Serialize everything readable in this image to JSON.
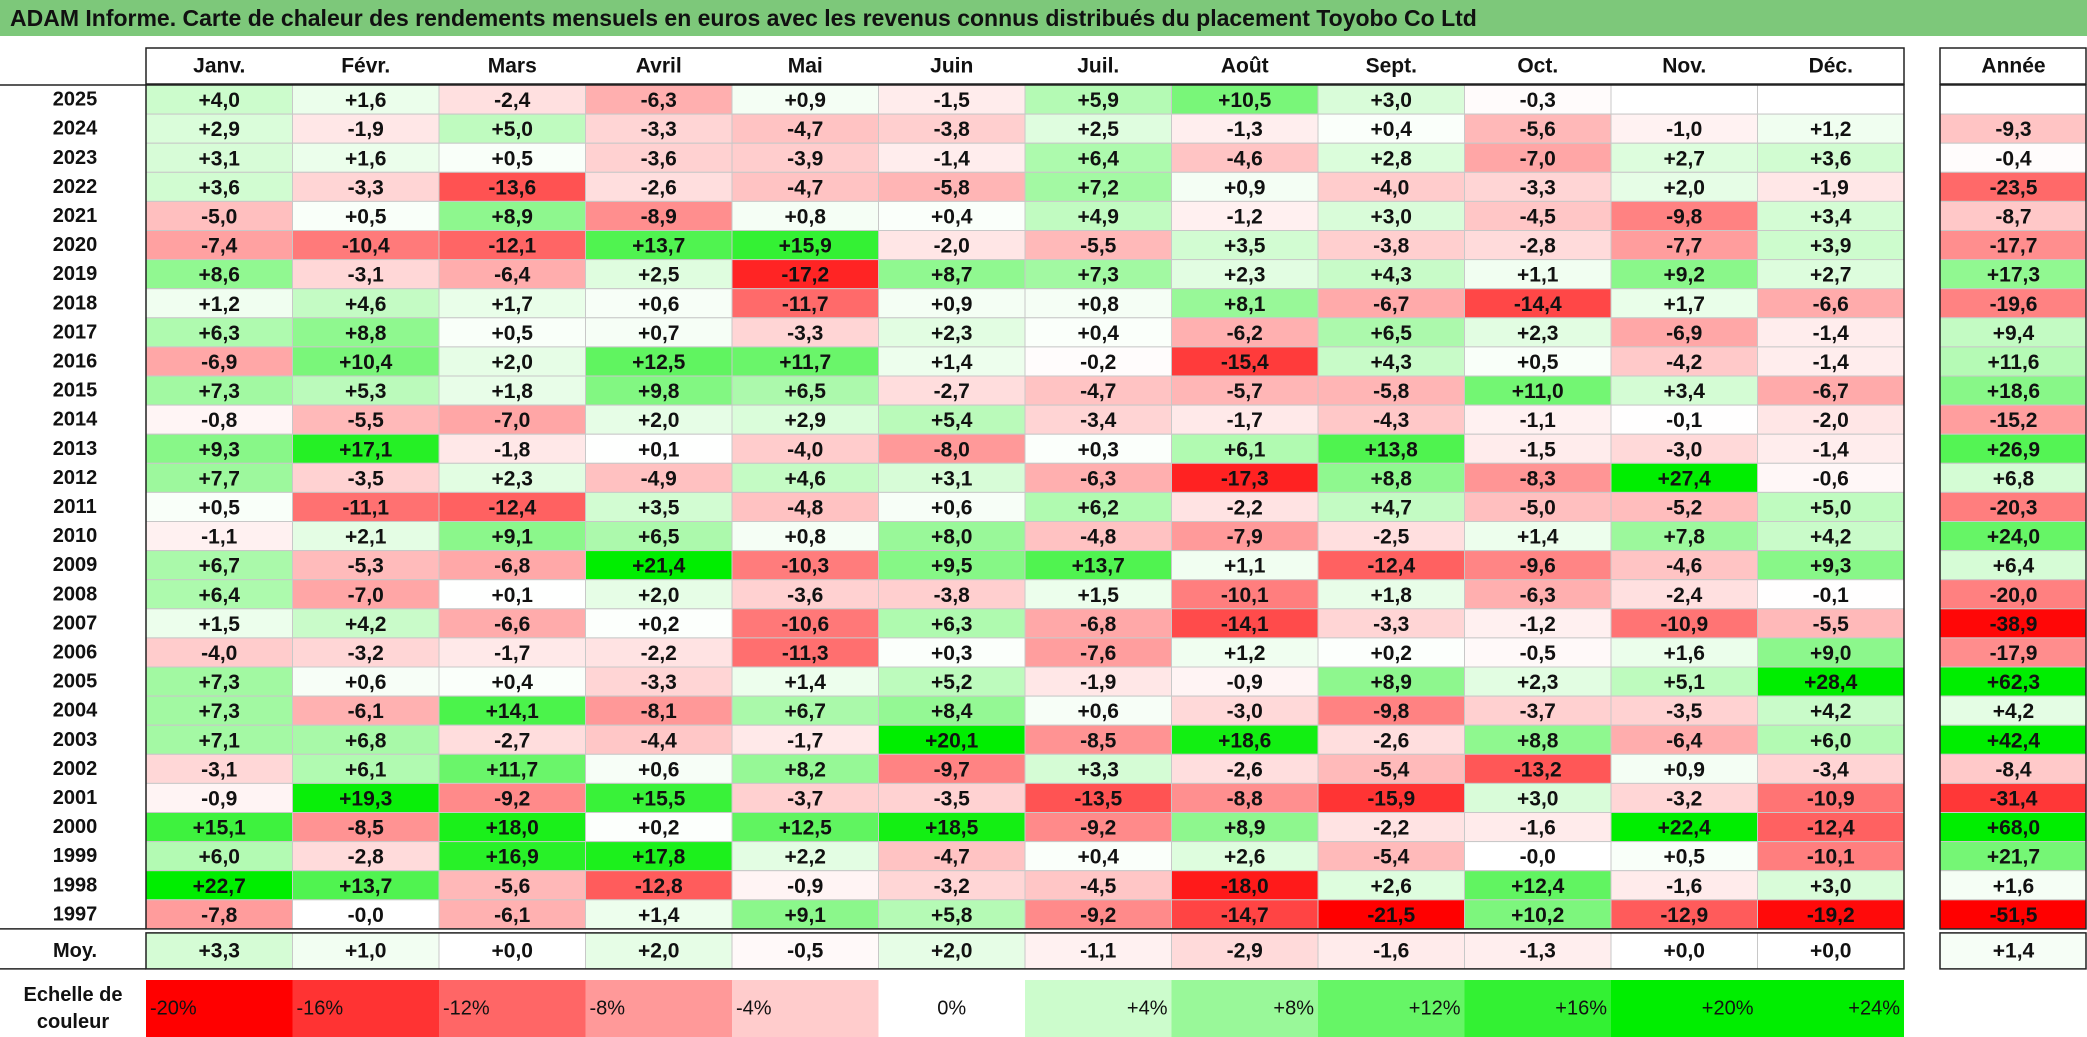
{
  "title": "ADAM Informe. Carte de chaleur des rendements mensuels en euros avec les revenus connus distribués du placement Toyobo Co Ltd",
  "chart_data": {
    "type": "heatmap",
    "months": [
      "Janv.",
      "Févr.",
      "Mars",
      "Avril",
      "Mai",
      "Juin",
      "Juil.",
      "Août",
      "Sept.",
      "Oct.",
      "Nov.",
      "Déc."
    ],
    "year_column_label": "Année",
    "average_row_label": "Moy.",
    "rows": [
      {
        "year": "2025",
        "values": [
          "+4,0",
          "+1,6",
          "-2,4",
          "-6,3",
          "+0,9",
          "-1,5",
          "+5,9",
          "+10,5",
          "+3,0",
          "-0,3",
          "",
          ""
        ],
        "annual": ""
      },
      {
        "year": "2024",
        "values": [
          "+2,9",
          "-1,9",
          "+5,0",
          "-3,3",
          "-4,7",
          "-3,8",
          "+2,5",
          "-1,3",
          "+0,4",
          "-5,6",
          "-1,0",
          "+1,2"
        ],
        "annual": "-9,3"
      },
      {
        "year": "2023",
        "values": [
          "+3,1",
          "+1,6",
          "+0,5",
          "-3,6",
          "-3,9",
          "-1,4",
          "+6,4",
          "-4,6",
          "+2,8",
          "-7,0",
          "+2,7",
          "+3,6"
        ],
        "annual": "-0,4"
      },
      {
        "year": "2022",
        "values": [
          "+3,6",
          "-3,3",
          "-13,6",
          "-2,6",
          "-4,7",
          "-5,8",
          "+7,2",
          "+0,9",
          "-4,0",
          "-3,3",
          "+2,0",
          "-1,9"
        ],
        "annual": "-23,5"
      },
      {
        "year": "2021",
        "values": [
          "-5,0",
          "+0,5",
          "+8,9",
          "-8,9",
          "+0,8",
          "+0,4",
          "+4,9",
          "-1,2",
          "+3,0",
          "-4,5",
          "-9,8",
          "+3,4"
        ],
        "annual": "-8,7"
      },
      {
        "year": "2020",
        "values": [
          "-7,4",
          "-10,4",
          "-12,1",
          "+13,7",
          "+15,9",
          "-2,0",
          "-5,5",
          "+3,5",
          "-3,8",
          "-2,8",
          "-7,7",
          "+3,9"
        ],
        "annual": "-17,7"
      },
      {
        "year": "2019",
        "values": [
          "+8,6",
          "-3,1",
          "-6,4",
          "+2,5",
          "-17,2",
          "+8,7",
          "+7,3",
          "+2,3",
          "+4,3",
          "+1,1",
          "+9,2",
          "+2,7"
        ],
        "annual": "+17,3"
      },
      {
        "year": "2018",
        "values": [
          "+1,2",
          "+4,6",
          "+1,7",
          "+0,6",
          "-11,7",
          "+0,9",
          "+0,8",
          "+8,1",
          "-6,7",
          "-14,4",
          "+1,7",
          "-6,6"
        ],
        "annual": "-19,6"
      },
      {
        "year": "2017",
        "values": [
          "+6,3",
          "+8,8",
          "+0,5",
          "+0,7",
          "-3,3",
          "+2,3",
          "+0,4",
          "-6,2",
          "+6,5",
          "+2,3",
          "-6,9",
          "-1,4"
        ],
        "annual": "+9,4"
      },
      {
        "year": "2016",
        "values": [
          "-6,9",
          "+10,4",
          "+2,0",
          "+12,5",
          "+11,7",
          "+1,4",
          "-0,2",
          "-15,4",
          "+4,3",
          "+0,5",
          "-4,2",
          "-1,4"
        ],
        "annual": "+11,6"
      },
      {
        "year": "2015",
        "values": [
          "+7,3",
          "+5,3",
          "+1,8",
          "+9,8",
          "+6,5",
          "-2,7",
          "-4,7",
          "-5,7",
          "-5,8",
          "+11,0",
          "+3,4",
          "-6,7"
        ],
        "annual": "+18,6"
      },
      {
        "year": "2014",
        "values": [
          "-0,8",
          "-5,5",
          "-7,0",
          "+2,0",
          "+2,9",
          "+5,4",
          "-3,4",
          "-1,7",
          "-4,3",
          "-1,1",
          "-0,1",
          "-2,0"
        ],
        "annual": "-15,2"
      },
      {
        "year": "2013",
        "values": [
          "+9,3",
          "+17,1",
          "-1,8",
          "+0,1",
          "-4,0",
          "-8,0",
          "+0,3",
          "+6,1",
          "+13,8",
          "-1,5",
          "-3,0",
          "-1,4"
        ],
        "annual": "+26,9"
      },
      {
        "year": "2012",
        "values": [
          "+7,7",
          "-3,5",
          "+2,3",
          "-4,9",
          "+4,6",
          "+3,1",
          "-6,3",
          "-17,3",
          "+8,8",
          "-8,3",
          "+27,4",
          "-0,6"
        ],
        "annual": "+6,8"
      },
      {
        "year": "2011",
        "values": [
          "+0,5",
          "-11,1",
          "-12,4",
          "+3,5",
          "-4,8",
          "+0,6",
          "+6,2",
          "-2,2",
          "+4,7",
          "-5,0",
          "-5,2",
          "+5,0"
        ],
        "annual": "-20,3"
      },
      {
        "year": "2010",
        "values": [
          "-1,1",
          "+2,1",
          "+9,1",
          "+6,5",
          "+0,8",
          "+8,0",
          "-4,8",
          "-7,9",
          "-2,5",
          "+1,4",
          "+7,8",
          "+4,2"
        ],
        "annual": "+24,0"
      },
      {
        "year": "2009",
        "values": [
          "+6,7",
          "-5,3",
          "-6,8",
          "+21,4",
          "-10,3",
          "+9,5",
          "+13,7",
          "+1,1",
          "-12,4",
          "-9,6",
          "-4,6",
          "+9,3"
        ],
        "annual": "+6,4"
      },
      {
        "year": "2008",
        "values": [
          "+6,4",
          "-7,0",
          "+0,1",
          "+2,0",
          "-3,6",
          "-3,8",
          "+1,5",
          "-10,1",
          "+1,8",
          "-6,3",
          "-2,4",
          "-0,1"
        ],
        "annual": "-20,0"
      },
      {
        "year": "2007",
        "values": [
          "+1,5",
          "+4,2",
          "-6,6",
          "+0,2",
          "-10,6",
          "+6,3",
          "-6,8",
          "-14,1",
          "-3,3",
          "-1,2",
          "-10,9",
          "-5,5"
        ],
        "annual": "-38,9"
      },
      {
        "year": "2006",
        "values": [
          "-4,0",
          "-3,2",
          "-1,7",
          "-2,2",
          "-11,3",
          "+0,3",
          "-7,6",
          "+1,2",
          "+0,2",
          "-0,5",
          "+1,6",
          "+9,0"
        ],
        "annual": "-17,9"
      },
      {
        "year": "2005",
        "values": [
          "+7,3",
          "+0,6",
          "+0,4",
          "-3,3",
          "+1,4",
          "+5,2",
          "-1,9",
          "-0,9",
          "+8,9",
          "+2,3",
          "+5,1",
          "+28,4"
        ],
        "annual": "+62,3"
      },
      {
        "year": "2004",
        "values": [
          "+7,3",
          "-6,1",
          "+14,1",
          "-8,1",
          "+6,7",
          "+8,4",
          "+0,6",
          "-3,0",
          "-9,8",
          "-3,7",
          "-3,5",
          "+4,2"
        ],
        "annual": "+4,2"
      },
      {
        "year": "2003",
        "values": [
          "+7,1",
          "+6,8",
          "-2,7",
          "-4,4",
          "-1,7",
          "+20,1",
          "-8,5",
          "+18,6",
          "-2,6",
          "+8,8",
          "-6,4",
          "+6,0"
        ],
        "annual": "+42,4"
      },
      {
        "year": "2002",
        "values": [
          "-3,1",
          "+6,1",
          "+11,7",
          "+0,6",
          "+8,2",
          "-9,7",
          "+3,3",
          "-2,6",
          "-5,4",
          "-13,2",
          "+0,9",
          "-3,4"
        ],
        "annual": "-8,4"
      },
      {
        "year": "2001",
        "values": [
          "-0,9",
          "+19,3",
          "-9,2",
          "+15,5",
          "-3,7",
          "-3,5",
          "-13,5",
          "-8,8",
          "-15,9",
          "+3,0",
          "-3,2",
          "-10,9"
        ],
        "annual": "-31,4"
      },
      {
        "year": "2000",
        "values": [
          "+15,1",
          "-8,5",
          "+18,0",
          "+0,2",
          "+12,5",
          "+18,5",
          "-9,2",
          "+8,9",
          "-2,2",
          "-1,6",
          "+22,4",
          "-12,4"
        ],
        "annual": "+68,0"
      },
      {
        "year": "1999",
        "values": [
          "+6,0",
          "-2,8",
          "+16,9",
          "+17,8",
          "+2,2",
          "-4,7",
          "+0,4",
          "+2,6",
          "-5,4",
          "-0,0",
          "+0,5",
          "-10,1"
        ],
        "annual": "+21,7"
      },
      {
        "year": "1998",
        "values": [
          "+22,7",
          "+13,7",
          "-5,6",
          "-12,8",
          "-0,9",
          "-3,2",
          "-4,5",
          "-18,0",
          "+2,6",
          "+12,4",
          "-1,6",
          "+3,0"
        ],
        "annual": "+1,6"
      },
      {
        "year": "1997",
        "values": [
          "-7,8",
          "-0,0",
          "-6,1",
          "+1,4",
          "+9,1",
          "+5,8",
          "-9,2",
          "-14,7",
          "-21,5",
          "+10,2",
          "-12,9",
          "-19,2"
        ],
        "annual": "-51,5"
      }
    ],
    "averages": {
      "values": [
        "+3,3",
        "+1,0",
        "+0,0",
        "+2,0",
        "-0,5",
        "+2,0",
        "-1,1",
        "-2,9",
        "-1,6",
        "-1,3",
        "+0,0",
        "+0,0"
      ],
      "annual": "+1,4"
    },
    "color_scale": {
      "label": "Echelle de couleur",
      "steps": [
        {
          "label": "-20%",
          "value": -20
        },
        {
          "label": "-16%",
          "value": -16
        },
        {
          "label": "-12%",
          "value": -12
        },
        {
          "label": "-8%",
          "value": -8
        },
        {
          "label": "-4%",
          "value": -4
        },
        {
          "label": "0%",
          "value": 0
        },
        {
          "label": "+4%",
          "value": 4
        },
        {
          "label": "+8%",
          "value": 8
        },
        {
          "label": "+12%",
          "value": 12
        },
        {
          "label": "+16%",
          "value": 16
        },
        {
          "label": "+20%",
          "value": 20
        },
        {
          "label": "+24%",
          "value": 24
        }
      ]
    },
    "colors": {
      "negative_max": "#ff0000",
      "neutral": "#ffffff",
      "positive_max": "#00ee00",
      "title_bg": "#7dc87a"
    }
  }
}
